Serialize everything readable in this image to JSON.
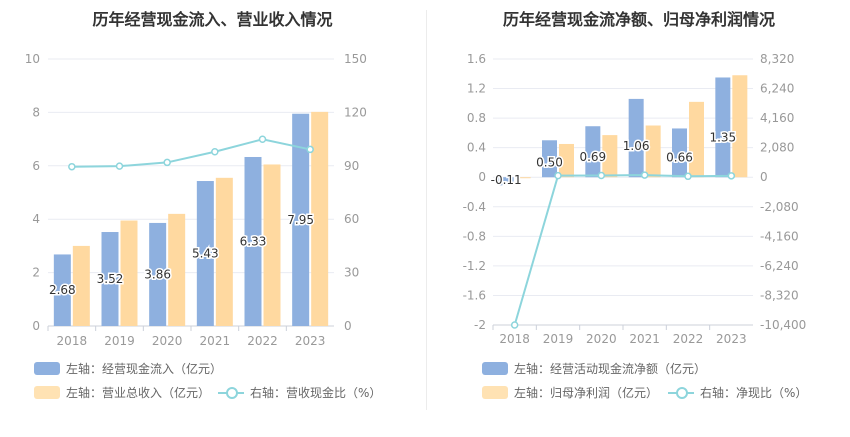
{
  "colors": {
    "bar1": "#8eb0df",
    "bar2": "#ffd9a0",
    "line": "#8dd5dc",
    "grid": "#e9ebf2",
    "axisText": "#999999",
    "labelText": "#333333"
  },
  "chart_data": [
    {
      "type": "bar",
      "title": "历年经营现金流入、营业收入情况",
      "categories": [
        "2018",
        "2019",
        "2020",
        "2021",
        "2022",
        "2023"
      ],
      "y_left": {
        "ticks": [
          "0",
          "2",
          "4",
          "6",
          "8",
          "10"
        ],
        "lim": [
          0,
          10
        ]
      },
      "y_right": {
        "ticks": [
          "0",
          "30",
          "60",
          "90",
          "120",
          "150"
        ],
        "lim": [
          0,
          150
        ]
      },
      "series": [
        {
          "name": "左轴：经营现金流入（亿元）",
          "kind": "bar",
          "axis": "left",
          "values": [
            2.68,
            3.52,
            3.86,
            5.43,
            6.33,
            7.95
          ],
          "labels": [
            "2.68",
            "3.52",
            "3.86",
            "5.43",
            "6.33",
            "7.95"
          ]
        },
        {
          "name": "左轴：营业总收入（亿元）",
          "kind": "bar",
          "axis": "left",
          "values": [
            3.0,
            3.95,
            4.2,
            5.55,
            6.05,
            8.02
          ]
        },
        {
          "name": "右轴：营收现金比（%）",
          "kind": "line",
          "axis": "right",
          "values": [
            89.5,
            89.8,
            91.9,
            97.9,
            104.9,
            99.2
          ]
        }
      ],
      "legend": [
        {
          "label": "左轴：经营现金流入（亿元）",
          "kind": "bar",
          "color": "#8eb0df"
        },
        {
          "label": "左轴：营业总收入（亿元）",
          "kind": "bar",
          "color": "#ffd9a0"
        },
        {
          "label": "右轴：营收现金比（%）",
          "kind": "line",
          "color": "#8dd5dc"
        }
      ]
    },
    {
      "type": "bar",
      "title": "历年经营现金流净额、归母净利润情况",
      "categories": [
        "2018",
        "2019",
        "2020",
        "2021",
        "2022",
        "2023"
      ],
      "y_left": {
        "ticks": [
          "-2",
          "-1.6",
          "-1.2",
          "-0.8",
          "-0.4",
          "0",
          "0.4",
          "0.8",
          "1.2",
          "1.6"
        ],
        "lim": [
          -2,
          1.6
        ]
      },
      "y_right": {
        "ticks": [
          "-10,400",
          "-8,320",
          "-6,240",
          "-4,160",
          "-2,080",
          "0",
          "2,080",
          "4,160",
          "6,240",
          "8,320"
        ],
        "lim": [
          -10400,
          8320
        ]
      },
      "series": [
        {
          "name": "左轴：经营活动现金流净额（亿元）",
          "kind": "bar",
          "axis": "left",
          "values": [
            -0.11,
            0.5,
            0.69,
            1.06,
            0.66,
            1.35
          ],
          "labels": [
            "-0.11",
            "0.50",
            "0.69",
            "1.06",
            "0.66",
            "1.35"
          ]
        },
        {
          "name": "左轴：归母净利润（亿元）",
          "kind": "bar",
          "axis": "left",
          "values": [
            -0.01,
            0.45,
            0.57,
            0.7,
            1.02,
            1.38
          ]
        },
        {
          "name": "右轴：净现比（%）",
          "kind": "line",
          "axis": "right",
          "values": [
            -10400,
            110,
            121,
            151,
            65,
            98
          ]
        }
      ],
      "legend": [
        {
          "label": "左轴：经营活动现金流净额（亿元）",
          "kind": "bar",
          "color": "#8eb0df"
        },
        {
          "label": "左轴：归母净利润（亿元）",
          "kind": "bar",
          "color": "#ffd9a0"
        },
        {
          "label": "右轴：净现比（%）",
          "kind": "line",
          "color": "#8dd5dc"
        }
      ]
    }
  ]
}
